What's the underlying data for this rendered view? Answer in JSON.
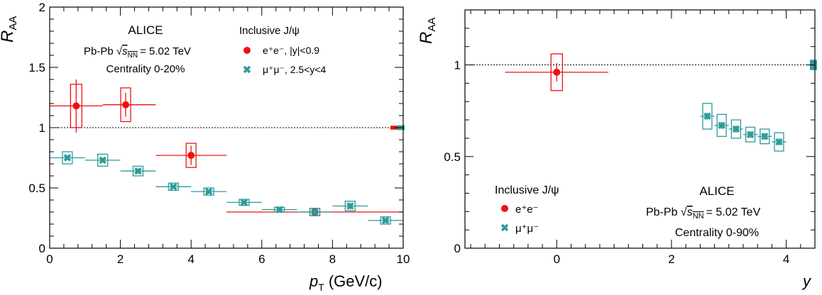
{
  "colors": {
    "electron": "#ee1111",
    "muon": "#2e9a9a",
    "axis": "#000000"
  },
  "chart_data": [
    {
      "type": "scatter",
      "experiment": "ALICE",
      "system": "Pb-Pb",
      "sqrt_s": "= 5.02 TeV",
      "centrality": "Centrality 0-20%",
      "legend_title": "Inclusive J/ψ",
      "xlabel": "(GeV/c)",
      "ylabel": "AA",
      "xlim": [
        0,
        10
      ],
      "ylim": [
        0,
        2
      ],
      "xticks": [
        0,
        2,
        4,
        6,
        8,
        10
      ],
      "yticks": [
        0,
        0.5,
        1,
        1.5,
        2
      ],
      "ytick_labels": [
        "0",
        "0.5",
        "1",
        "1.5",
        "2"
      ],
      "reference_line": 1,
      "norm_boxes": [
        {
          "series": 0,
          "half_height": 0.016
        },
        {
          "series": 1,
          "half_height": 0.02
        }
      ],
      "series": [
        {
          "name": "e⁺e⁻, |y|<0.9",
          "marker": "circle",
          "points": [
            {
              "x": 0.75,
              "x_lo": 0,
              "x_hi": 1.5,
              "y": 1.18,
              "stat": 0.22,
              "syst": 0.18,
              "box_w": 0.16
            },
            {
              "x": 2.15,
              "x_lo": 1.5,
              "x_hi": 3.0,
              "y": 1.19,
              "stat": 0.1,
              "syst": 0.14,
              "box_w": 0.14
            },
            {
              "x": 4.0,
              "x_lo": 3.0,
              "x_hi": 5.0,
              "y": 0.77,
              "stat": 0.08,
              "syst": 0.1,
              "box_w": 0.14
            },
            {
              "x": 7.5,
              "x_lo": 5.0,
              "x_hi": 10.0,
              "y": 0.3,
              "stat": 0.03,
              "syst": 0.03,
              "box_w": 0.14
            }
          ]
        },
        {
          "name": "μ⁺μ⁻, 2.5<y<4",
          "marker": "cross",
          "points": [
            {
              "x": 0.5,
              "x_lo": 0,
              "x_hi": 1,
              "y": 0.75,
              "stat": 0.02,
              "syst": 0.05,
              "box_w": 0.14
            },
            {
              "x": 1.5,
              "x_lo": 1,
              "x_hi": 2,
              "y": 0.73,
              "stat": 0.02,
              "syst": 0.05,
              "box_w": 0.14
            },
            {
              "x": 2.5,
              "x_lo": 2,
              "x_hi": 3,
              "y": 0.64,
              "stat": 0.02,
              "syst": 0.04,
              "box_w": 0.14
            },
            {
              "x": 3.5,
              "x_lo": 3,
              "x_hi": 4,
              "y": 0.51,
              "stat": 0.015,
              "syst": 0.03,
              "box_w": 0.14
            },
            {
              "x": 4.5,
              "x_lo": 4,
              "x_hi": 5,
              "y": 0.47,
              "stat": 0.015,
              "syst": 0.03,
              "box_w": 0.14
            },
            {
              "x": 5.5,
              "x_lo": 5,
              "x_hi": 6,
              "y": 0.38,
              "stat": 0.015,
              "syst": 0.025,
              "box_w": 0.14
            },
            {
              "x": 6.5,
              "x_lo": 6,
              "x_hi": 7,
              "y": 0.32,
              "stat": 0.015,
              "syst": 0.02,
              "box_w": 0.14
            },
            {
              "x": 7.5,
              "x_lo": 7,
              "x_hi": 8,
              "y": 0.3,
              "stat": 0.02,
              "syst": 0.03,
              "box_w": 0.14
            },
            {
              "x": 8.5,
              "x_lo": 8,
              "x_hi": 9,
              "y": 0.35,
              "stat": 0.03,
              "syst": 0.04,
              "box_w": 0.14
            },
            {
              "x": 9.5,
              "x_lo": 9,
              "x_hi": 10,
              "y": 0.23,
              "stat": 0.02,
              "syst": 0.03,
              "box_w": 0.14
            }
          ]
        }
      ]
    },
    {
      "type": "scatter",
      "experiment": "ALICE",
      "system": "Pb-Pb",
      "sqrt_s": "= 5.02 TeV",
      "centrality": "Centrality 0-90%",
      "legend_title": "Inclusive J/ψ",
      "xlabel": "y",
      "ylabel": "AA",
      "xlim": [
        -1.6,
        4.5
      ],
      "ylim": [
        0,
        1.3
      ],
      "xticks": [
        0,
        2,
        4
      ],
      "yticks": [
        0,
        0.5,
        1
      ],
      "ytick_labels": [
        "0",
        "0.5",
        "1"
      ],
      "reference_line": 1,
      "norm_boxes": [
        {
          "series": 1,
          "half_height": 0.028
        }
      ],
      "series": [
        {
          "name": "e⁺e⁻",
          "marker": "circle",
          "points": [
            {
              "x": 0.0,
              "x_lo": -0.9,
              "x_hi": 0.9,
              "y": 0.96,
              "stat": 0.05,
              "syst": 0.1,
              "box_w": 0.1
            }
          ]
        },
        {
          "name": "μ⁺μ⁻",
          "marker": "cross",
          "points": [
            {
              "x": 2.625,
              "x_lo": 2.5,
              "x_hi": 2.75,
              "y": 0.72,
              "stat": 0.02,
              "syst": 0.07,
              "box_w": 0.08
            },
            {
              "x": 2.875,
              "x_lo": 2.75,
              "x_hi": 3.0,
              "y": 0.67,
              "stat": 0.02,
              "syst": 0.06,
              "box_w": 0.08
            },
            {
              "x": 3.125,
              "x_lo": 3.0,
              "x_hi": 3.25,
              "y": 0.65,
              "stat": 0.02,
              "syst": 0.05,
              "box_w": 0.08
            },
            {
              "x": 3.375,
              "x_lo": 3.25,
              "x_hi": 3.5,
              "y": 0.62,
              "stat": 0.02,
              "syst": 0.04,
              "box_w": 0.08
            },
            {
              "x": 3.625,
              "x_lo": 3.5,
              "x_hi": 3.75,
              "y": 0.61,
              "stat": 0.02,
              "syst": 0.04,
              "box_w": 0.08
            },
            {
              "x": 3.875,
              "x_lo": 3.75,
              "x_hi": 4.0,
              "y": 0.58,
              "stat": 0.02,
              "syst": 0.05,
              "box_w": 0.08
            }
          ]
        }
      ]
    }
  ]
}
